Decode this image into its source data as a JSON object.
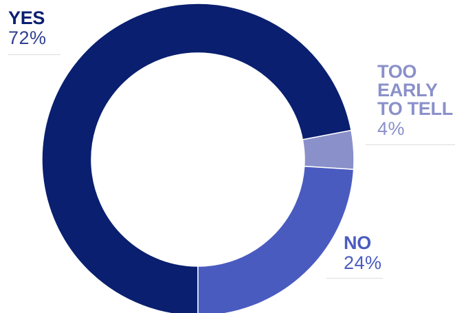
{
  "chart_data": {
    "type": "pie",
    "style": "donut",
    "slices": [
      {
        "label": "YES",
        "value": 72,
        "display": "72%",
        "color": "#0a1f6f"
      },
      {
        "label": "TOO EARLY TO TELL",
        "value": 4,
        "display": "4%",
        "color": "#8a90c9"
      },
      {
        "label": "NO",
        "value": 24,
        "display": "24%",
        "color": "#4a5bc0"
      }
    ]
  }
}
